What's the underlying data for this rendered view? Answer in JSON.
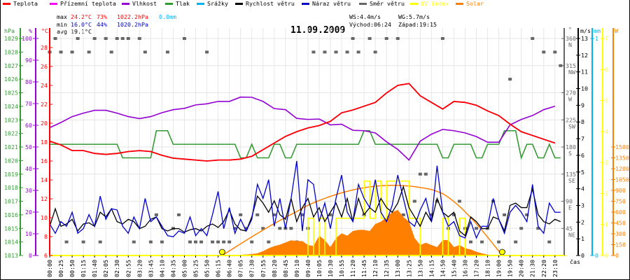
{
  "legend": [
    {
      "label": "Teplota",
      "color": "#ff0000"
    },
    {
      "label": "Přízemní teplota",
      "color": "#ff00ff"
    },
    {
      "label": "Vlhkost",
      "color": "#9400d3"
    },
    {
      "label": "Tlak",
      "color": "#339933"
    },
    {
      "label": "Srážky",
      "color": "#00b4f0"
    },
    {
      "label": "Rychlost větru",
      "color": "#000000"
    },
    {
      "label": "Náraz větru",
      "color": "#0000cc"
    },
    {
      "label": "Směr větru",
      "color": "#666666"
    },
    {
      "label": "UV index",
      "color": "#ffff00"
    },
    {
      "label": "Solar",
      "color": "#ff8000"
    }
  ],
  "stats": {
    "max_label": "max",
    "max_temp": "24.2°C",
    "max_hum": "73%",
    "max_press": "1022.2hPa",
    "max_rain": "0.0mm",
    "min_label": "min",
    "min_temp": "16.0°C",
    "min_hum": "44%",
    "min_press": "1020.2hPa",
    "avg_label": "avg",
    "avg_temp": "19.1°C"
  },
  "wind_sun": {
    "ws": "WS:4.4m/s",
    "wg": "WG:5.7m/s",
    "sunrise_text": "Východ:06:24",
    "sunset_text": "Západ:19:15"
  },
  "chart_data": {
    "type": "line",
    "title": "11.09.2009",
    "xlabel": "čas",
    "grid": true,
    "x_ticks": [
      "00:00",
      "00:25",
      "00:50",
      "01:15",
      "01:40",
      "02:05",
      "02:30",
      "02:55",
      "03:20",
      "03:45",
      "04:10",
      "04:35",
      "05:00",
      "05:25",
      "05:50",
      "06:15",
      "06:40",
      "07:05",
      "07:30",
      "07:55",
      "08:20",
      "08:45",
      "09:10",
      "09:40",
      "10:05",
      "10:30",
      "10:55",
      "11:20",
      "11:45",
      "12:10",
      "12:35",
      "13:00",
      "13:25",
      "13:50",
      "14:15",
      "14:50",
      "15:40",
      "16:30",
      "17:20",
      "18:10",
      "19:00",
      "19:50",
      "20:40",
      "21:30",
      "22:20",
      "23:10"
    ],
    "sunrise": "06:24",
    "sunset": "19:15",
    "axes": {
      "pressure": {
        "unit": "hPa",
        "range": [
          1013,
          1029
        ],
        "ticks": [
          "1013",
          "1014",
          "1015",
          "1016",
          "1017",
          "1018",
          "1019",
          "1020",
          "1021",
          "1022",
          "1023",
          "1024",
          "1025",
          "1026",
          "1027",
          "1028",
          "1029"
        ]
      },
      "humidity": {
        "unit": "%",
        "range": [
          0,
          100
        ],
        "ticks": [
          "0",
          "10",
          "20",
          "30",
          "40",
          "50",
          "60",
          "70",
          "80",
          "90",
          "100"
        ]
      },
      "temperature": {
        "unit": "°C",
        "range": [
          6,
          29
        ],
        "ticks": [
          "6",
          "8",
          "10",
          "12",
          "14",
          "16",
          "18",
          "20",
          "22",
          "24",
          "26",
          "28"
        ]
      },
      "direction": {
        "unit": "°",
        "range": [
          0,
          360
        ],
        "ticks": [
          [
            "45",
            "NE"
          ],
          [
            "90",
            "E"
          ],
          [
            "135",
            "SE"
          ],
          [
            "180",
            "S"
          ],
          [
            "225",
            "SW"
          ],
          [
            "270",
            "W"
          ],
          [
            "315",
            "NW"
          ],
          [
            "360",
            "N"
          ]
        ]
      },
      "wind": {
        "unit": "m/s",
        "range": [
          0,
          13
        ],
        "ticks": [
          "0",
          "1",
          "2",
          "3",
          "4",
          "5",
          "6",
          "7",
          "8",
          "9",
          "10",
          "11",
          "12",
          "13"
        ]
      },
      "rain": {
        "unit": "mm",
        "range": [
          0,
          1
        ],
        "ticks": [
          "0",
          "1"
        ]
      },
      "uv": {
        "unit": "",
        "range": [
          0,
          7
        ],
        "ticks": [
          "0",
          "1",
          "2",
          "3",
          "4",
          "5",
          "6",
          "7"
        ]
      },
      "solar": {
        "unit": "W",
        "range": [
          0,
          2000
        ],
        "ticks": [
          "0",
          "150",
          "300",
          "450",
          "600",
          "750",
          "900",
          "1050",
          "1200",
          "1350",
          "1500"
        ]
      }
    },
    "series": {
      "temperature": [
        18.1,
        17.7,
        17.1,
        17.1,
        16.8,
        16.7,
        16.8,
        17.0,
        17.1,
        17.0,
        16.6,
        16.3,
        16.2,
        16.1,
        16.0,
        16.1,
        16.1,
        16.2,
        16.5,
        17.2,
        17.9,
        18.6,
        19.1,
        19.5,
        19.75,
        20.2,
        21.1,
        21.4,
        21.8,
        22.2,
        23.2,
        24.0,
        24.2,
        22.9,
        22.2,
        21.5,
        22.3,
        22.2,
        21.9,
        21.3,
        20.8,
        19.9,
        19.1,
        18.7,
        18.3,
        17.9
      ],
      "humidity": [
        58.9,
        61.3,
        64,
        65.6,
        66.9,
        66.9,
        65.6,
        64,
        63.1,
        64,
        65.8,
        67.2,
        67.8,
        69.4,
        69.9,
        71,
        71,
        73,
        72.9,
        71,
        67.7,
        67.2,
        63.2,
        62.7,
        62.9,
        60.2,
        60.5,
        57.7,
        57.5,
        56.5,
        52.4,
        48.9,
        44,
        52.7,
        55.9,
        58.1,
        57.5,
        56.5,
        54.8,
        52.2,
        52.2,
        60.2,
        62.7,
        64.5,
        67.2,
        68.8
      ],
      "pressure": [
        1021.2,
        1021.2,
        1021.2,
        1021.2,
        1021.2,
        1021.2,
        1021.2,
        1021.2,
        1021.2,
        1021.2,
        1021.2,
        1021.2,
        1021.2,
        1020.2,
        1020.2,
        1020.2,
        1020.2,
        1020.2,
        1020.2,
        1022.2,
        1022.2,
        1022.2,
        1021.2,
        1021.2,
        1021.2,
        1021.2,
        1021.2,
        1021.2,
        1021.2,
        1021.2,
        1021.2,
        1021.2,
        1021.2,
        1021.2,
        1020.2,
        1020.2,
        1021.2,
        1020.2,
        1020.2,
        1020.2,
        1021.2,
        1021.2,
        1020.2,
        1020.2,
        1021.2,
        1021.2,
        1021.2,
        1021.2,
        1021.2,
        1021.2,
        1021.2,
        1021.2,
        1021.2,
        1021.2,
        1021.2,
        1021.2,
        1022.2,
        1022.2,
        1021.2,
        1021.2,
        1021.2,
        1021.2,
        1021.2,
        1021.2,
        1021.2,
        1021.2,
        1021.2,
        1021.2,
        1021.2,
        1021.2,
        1020.2,
        1020.2,
        1021.2,
        1021.2,
        1021.2,
        1021.2,
        1020.2,
        1020.2,
        1021.2,
        1021.2,
        1021.2,
        1022.2,
        1022.2,
        1022.2,
        1020.2,
        1021.2,
        1021.2,
        1020.2,
        1020.2,
        1021.2,
        1020.2,
        1020.2
      ],
      "rain": 0.0,
      "wind_speed": [
        1.75,
        2.8,
        1.75,
        1.89,
        2.17,
        1.47,
        1.89,
        1.96,
        1.75,
        2.59,
        2.31,
        2.8,
        2.03,
        1.89,
        2.17,
        2.03,
        1.61,
        1.75,
        2.17,
        2.31,
        1.61,
        1.47,
        1.61,
        1.61,
        1.4,
        1.54,
        1.61,
        1.47,
        1.75,
        1.89,
        1.68,
        2.03,
        2.73,
        1.89,
        1.54,
        1.47,
        2.31,
        3.56,
        3.14,
        2.59,
        3.28,
        2.45,
        2.17,
        3.42,
        2.03,
        2.87,
        3.42,
        2.31,
        2.87,
        2.03,
        2.59,
        3.14,
        2.31,
        3.42,
        2.03,
        3.42,
        2.45,
        2.87,
        2.59,
        3.42,
        2.87,
        2.59,
        3.14,
        4.12,
        2.87,
        2.31,
        1.75,
        2.59,
        2.03,
        3.42,
        2.59,
        2.31,
        2.59,
        1.47,
        1.19,
        2.31,
        2.03,
        1.61,
        1.61,
        2.31,
        2.17,
        1.47,
        3.0,
        3.14,
        2.87,
        2.87,
        3.98,
        2.45,
        2.03,
        1.89,
        2.17,
        2.03
      ],
      "wind_gust": [
        1.89,
        1.33,
        2.03,
        1.75,
        2.59,
        1.33,
        1.61,
        2.45,
        1.75,
        3.56,
        2.17,
        2.8,
        2.73,
        1.75,
        1.33,
        2.31,
        1.61,
        3.42,
        2.03,
        2.31,
        1.75,
        1.19,
        1.12,
        1.47,
        1.33,
        2.31,
        1.19,
        1.61,
        1.19,
        2.45,
        3.84,
        1.61,
        2.87,
        1.33,
        2.17,
        1.47,
        2.17,
        4.26,
        3.42,
        4.54,
        1.75,
        3.42,
        1.61,
        3.42,
        5.66,
        1.47,
        4.54,
        4.26,
        2.03,
        3.14,
        1.61,
        3.42,
        4.82,
        2.59,
        2.03,
        4.26,
        3.42,
        2.87,
        4.54,
        2.59,
        2.03,
        3.0,
        4.82,
        3.42,
        2.03,
        1.75,
        2.73,
        3.42,
        2.03,
        5.38,
        2.59,
        1.75,
        2.03,
        1.19,
        1.05,
        2.03,
        1.05,
        1.75,
        1.75,
        3.42,
        2.17,
        1.33,
        2.59,
        3.0,
        2.59,
        2.03,
        4.26,
        1.75,
        1.33,
        3.14,
        2.59,
        2.59
      ],
      "wind_direction": [
        337.5,
        360,
        337.5,
        22.5,
        337.5,
        360,
        22.5,
        337.5,
        360,
        22.5,
        360,
        337.5,
        360,
        360,
        360,
        22.5,
        360,
        337.5,
        22.5,
        67.5,
        22.5,
        337.5,
        45,
        67.5,
        360,
        22.5,
        22.5,
        22.5,
        337.5,
        22.5,
        22.5,
        22.5,
        22.5,
        45,
        67.5,
        45,
        22.5,
        67.5,
        45,
        22.5,
        67.5,
        45,
        45,
        45,
        22.5,
        67.5,
        45,
        337.5,
        22.5,
        337.5,
        67.5,
        337.5,
        22.5,
        337.5,
        360,
        337.5,
        67.5,
        360,
        337.5,
        22.5,
        360,
        22.5,
        360,
        67.5,
        22.5,
        90,
        135,
        135,
        67.5,
        90,
        360,
        45,
        67.5,
        90,
        45,
        22.5,
        45,
        22.5,
        45,
        90,
        22.5,
        67.5,
        292.5,
        22.5,
        45,
        67.5,
        360,
        45,
        337.5,
        22.5,
        337.5,
        315
      ],
      "uv_index": [
        0,
        0,
        0,
        0,
        0,
        0,
        0,
        0,
        0,
        0,
        0,
        0,
        0,
        0,
        0,
        0,
        0,
        0,
        0,
        0,
        0,
        0,
        0,
        0,
        0,
        0,
        0,
        0,
        0,
        0,
        0,
        0,
        0,
        0,
        0,
        0,
        0,
        0,
        0,
        0,
        0,
        0,
        0,
        0,
        0,
        0,
        1.2,
        0,
        1.2,
        0,
        0,
        1.2,
        1.2,
        1.2,
        1.2,
        1.2,
        2.4,
        1.2,
        2.4,
        1.2,
        2.4,
        2.4,
        2.4,
        2.4,
        1.2,
        1.2,
        0,
        0,
        0,
        0,
        1.2,
        0,
        0,
        1.2,
        0,
        0,
        0,
        0,
        0,
        0,
        0,
        0,
        0,
        0,
        0,
        0,
        0,
        0,
        0,
        0,
        0,
        0
      ],
      "solar": [
        0,
        0,
        0,
        0,
        0,
        0,
        0,
        0,
        0,
        0,
        0,
        0,
        0,
        0,
        0,
        0,
        0,
        0,
        0,
        0,
        0,
        0,
        0,
        0,
        0,
        0,
        0,
        0,
        0,
        0,
        0,
        0,
        0,
        0,
        10,
        15,
        20,
        30,
        60,
        100,
        130,
        150,
        180,
        210,
        200,
        200,
        145,
        131,
        274,
        213,
        116,
        242,
        306,
        274,
        339,
        355,
        355,
        339,
        436,
        468,
        532,
        597,
        630,
        532,
        468,
        242,
        145,
        177,
        145,
        116,
        213,
        213,
        116,
        145,
        100,
        84,
        52,
        29,
        13,
        0,
        0,
        0,
        0,
        0,
        0,
        0,
        0,
        0,
        0,
        0,
        0,
        0
      ],
      "solar_theoretical_peak": 970
    }
  }
}
